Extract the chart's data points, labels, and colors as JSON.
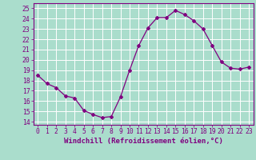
{
  "x": [
    0,
    1,
    2,
    3,
    4,
    5,
    6,
    7,
    8,
    9,
    10,
    11,
    12,
    13,
    14,
    15,
    16,
    17,
    18,
    19,
    20,
    21,
    22,
    23
  ],
  "y": [
    18.5,
    17.7,
    17.3,
    16.5,
    16.3,
    15.1,
    14.7,
    14.4,
    14.5,
    16.4,
    19.0,
    21.4,
    23.1,
    24.1,
    24.1,
    24.8,
    24.4,
    23.8,
    23.0,
    21.4,
    19.8,
    19.2,
    19.1,
    19.3
  ],
  "color": "#800080",
  "bg_color": "#aaddcc",
  "grid_color": "#ffffff",
  "xlabel": "Windchill (Refroidissement éolien,°C)",
  "xlabel_fontsize": 6.5,
  "ylabel_ticks": [
    14,
    15,
    16,
    17,
    18,
    19,
    20,
    21,
    22,
    23,
    24,
    25
  ],
  "xlim": [
    -0.5,
    23.5
  ],
  "ylim": [
    13.7,
    25.5
  ],
  "xticks": [
    0,
    1,
    2,
    3,
    4,
    5,
    6,
    7,
    8,
    9,
    10,
    11,
    12,
    13,
    14,
    15,
    16,
    17,
    18,
    19,
    20,
    21,
    22,
    23
  ],
  "tick_fontsize": 5.8,
  "marker": "D",
  "marker_size": 2.0,
  "line_width": 0.9
}
